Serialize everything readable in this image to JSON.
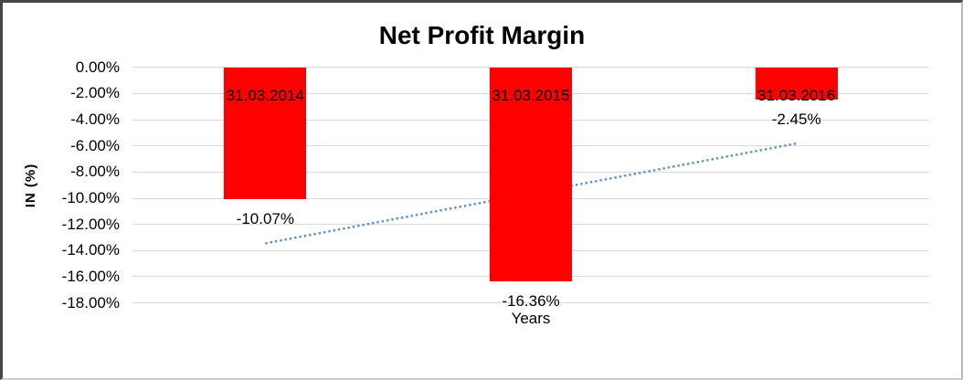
{
  "window": {
    "background": "#ffffff",
    "border_dark": "#474747",
    "border_light": "#cdcdcd"
  },
  "chart_data": {
    "type": "bar",
    "title": "Net Profit Margin",
    "xlabel": "Years",
    "ylabel": "IN (%)",
    "categories": [
      "31.03.2014",
      "31.03.2015",
      "31.03.2016"
    ],
    "values": [
      -10.07,
      -16.36,
      -2.45
    ],
    "value_labels": [
      "-10.07%",
      "-16.36%",
      "-2.45%"
    ],
    "bar_color": "#ff0000",
    "ylim": [
      0,
      -18
    ],
    "ytick_labels": [
      "0.00%",
      "-2.00%",
      "-4.00%",
      "-6.00%",
      "-8.00%",
      "-10.00%",
      "-12.00%",
      "-14.00%",
      "-16.00%",
      "-18.00%"
    ],
    "ytick_values": [
      0,
      -2,
      -4,
      -6,
      -8,
      -10,
      -12,
      -14,
      -16,
      -18
    ],
    "grid": true,
    "gridline_color": "#d9d9d9",
    "legend": "none",
    "trendline": {
      "type": "linear",
      "style": "dotted",
      "color": "#5a8cc8",
      "start_value": -13.45,
      "end_value": -5.82
    }
  }
}
